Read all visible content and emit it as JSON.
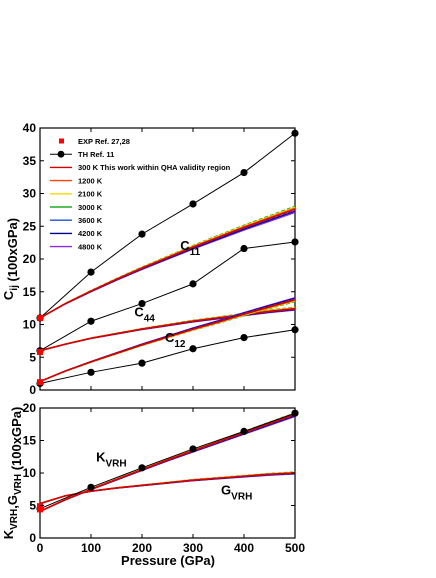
{
  "chart_data": [
    {
      "type": "line",
      "xlabel": "",
      "ylabel": "C_ij (100xGPa)",
      "xlim": [
        0,
        500
      ],
      "ylim": [
        0,
        40
      ],
      "xticks": [
        0,
        100,
        200,
        300,
        400,
        500
      ],
      "yticks": [
        0,
        5,
        10,
        15,
        20,
        25,
        30,
        35,
        40
      ],
      "grid": false,
      "legend_position": "top-left",
      "legend": [
        {
          "label": "EXP Ref. 27,28",
          "color": "#ff0000",
          "style": "square-marker"
        },
        {
          "label": "TH Ref. 11",
          "color": "#000000",
          "style": "line-circle"
        },
        {
          "label": "300 K This work within QHA validity region",
          "color": "#d40000",
          "style": "line"
        },
        {
          "label": "1200 K",
          "color": "#ff4500",
          "style": "line"
        },
        {
          "label": "2100 K",
          "color": "#f5d800",
          "style": "line"
        },
        {
          "label": "3000 K",
          "color": "#22aa22",
          "style": "line"
        },
        {
          "label": "3600 K",
          "color": "#1f4fd8",
          "style": "line"
        },
        {
          "label": "4200 K",
          "color": "#00008b",
          "style": "line"
        },
        {
          "label": "4800 K",
          "color": "#8a2be2",
          "style": "line"
        }
      ],
      "annotations": [
        {
          "base": "C",
          "sub": "11",
          "x": 275,
          "y": 21.4
        },
        {
          "base": "C",
          "sub": "44",
          "x": 185,
          "y": 11.2
        },
        {
          "base": "C",
          "sub": "12",
          "x": 245,
          "y": 7.3
        }
      ],
      "experimental": [
        {
          "name": "EXP Ref. 27,28",
          "x": [
            0,
            0,
            0
          ],
          "y": [
            11.0,
            5.8,
            1.2
          ]
        }
      ],
      "series": [
        {
          "name": "TH Ref. 11",
          "group": "C11",
          "x": [
            0,
            100,
            200,
            300,
            400,
            500
          ],
          "y": [
            11.0,
            18.0,
            23.8,
            28.4,
            33.2,
            39.2
          ]
        },
        {
          "name": "TH Ref. 11",
          "group": "C44",
          "x": [
            0,
            100,
            200,
            300,
            400,
            500
          ],
          "y": [
            6.0,
            10.5,
            13.2,
            16.2,
            21.6,
            22.6
          ]
        },
        {
          "name": "TH Ref. 11",
          "group": "C12",
          "x": [
            0,
            100,
            200,
            300,
            400,
            500
          ],
          "y": [
            1.0,
            2.7,
            4.1,
            6.3,
            8.0,
            9.2
          ]
        },
        {
          "name": "300 K This work within QHA validity region",
          "group": "C11",
          "x": [
            0,
            50,
            100,
            150,
            200,
            250,
            300,
            350,
            400,
            450,
            500
          ],
          "y": [
            11.0,
            13.2,
            15.1,
            16.9,
            18.6,
            20.2,
            21.8,
            23.3,
            24.8,
            26.2,
            27.6
          ]
        },
        {
          "name": "300 K This work within QHA validity region",
          "group": "C44",
          "x": [
            0,
            50,
            100,
            150,
            200,
            250,
            300,
            350,
            400,
            450,
            500
          ],
          "y": [
            6.0,
            7.0,
            7.9,
            8.6,
            9.3,
            9.9,
            10.5,
            11.0,
            11.5,
            12.0,
            12.4
          ]
        },
        {
          "name": "300 K This work within QHA validity region",
          "group": "C12",
          "x": [
            0,
            50,
            100,
            150,
            200,
            250,
            300,
            350,
            400,
            450,
            500
          ],
          "y": [
            1.3,
            2.9,
            4.3,
            5.6,
            6.9,
            8.1,
            9.3,
            10.4,
            11.6,
            12.7,
            13.8
          ]
        }
      ],
      "temperature_shift_c11": [
        0.0,
        0.15,
        0.3,
        0.45,
        -0.1,
        -0.3,
        -0.5
      ],
      "temperature_shift_c44": [
        0.0,
        0.08,
        0.16,
        0.24,
        -0.05,
        -0.12,
        -0.2
      ],
      "temperature_shift_c12": [
        0.0,
        -0.1,
        -0.2,
        -0.3,
        0.1,
        0.2,
        0.3
      ]
    },
    {
      "type": "line",
      "xlabel": "Pressure (GPa)",
      "ylabel": "K_VRH,G_VRH (100xGPa)",
      "xlim": [
        0,
        500
      ],
      "ylim": [
        0,
        20
      ],
      "xticks": [
        0,
        100,
        200,
        300,
        400,
        500
      ],
      "yticks": [
        0,
        5,
        10,
        15,
        20
      ],
      "grid": false,
      "annotations": [
        {
          "base": "K",
          "sub": "VRH",
          "x": 110,
          "y": 11.8
        },
        {
          "base": "G",
          "sub": "VRH",
          "x": 355,
          "y": 6.7
        }
      ],
      "experimental": [
        {
          "name": "EXP Ref. 27,28",
          "x": [
            0,
            0
          ],
          "y": [
            4.9,
            4.4
          ]
        }
      ],
      "series": [
        {
          "name": "TH Ref. 11",
          "group": "K",
          "x": [
            0,
            100,
            200,
            300,
            400,
            500
          ],
          "y": [
            4.5,
            7.8,
            10.8,
            13.7,
            16.4,
            19.2
          ]
        },
        {
          "name": "300 K This work within QHA validity region",
          "group": "K",
          "x": [
            0,
            50,
            100,
            150,
            200,
            250,
            300,
            350,
            400,
            450,
            500
          ],
          "y": [
            4.1,
            5.9,
            7.5,
            9.0,
            10.5,
            12.0,
            13.4,
            14.8,
            16.2,
            17.6,
            19.0
          ]
        },
        {
          "name": "300 K This work within QHA validity region",
          "group": "G",
          "x": [
            0,
            50,
            100,
            150,
            200,
            250,
            300,
            350,
            400,
            450,
            500
          ],
          "y": [
            5.3,
            6.5,
            7.2,
            7.7,
            8.1,
            8.5,
            8.9,
            9.2,
            9.5,
            9.8,
            10.0
          ]
        }
      ]
    }
  ]
}
